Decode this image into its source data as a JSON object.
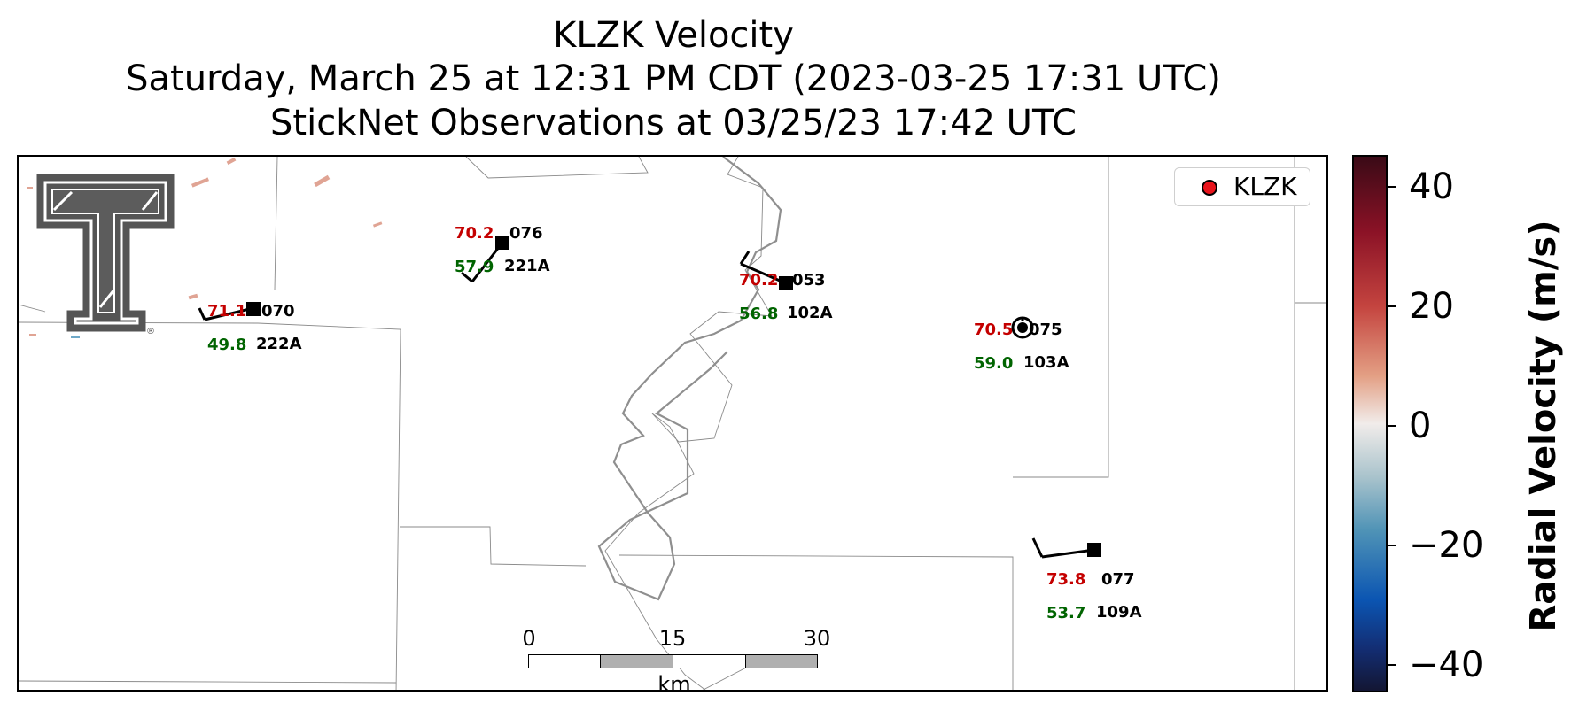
{
  "title": {
    "line1": "KLZK Velocity",
    "line2": "Saturday, March 25 at 12:31 PM CDT (2023-03-25 17:31 UTC)",
    "line3": "StickNet Observations at 03/25/23 17:42 UTC"
  },
  "legend": {
    "label": "KLZK",
    "marker_color": "#e8141c"
  },
  "scale_bar": {
    "ticks": [
      "0",
      "15",
      "30"
    ],
    "unit": "km"
  },
  "colorbar": {
    "label": "Radial Velocity (m/s)",
    "ticks": [
      "40",
      "20",
      "0",
      "−20",
      "−40"
    ],
    "range": [
      -45,
      45
    ]
  },
  "logo": {
    "name": "Texas Tech Double T"
  },
  "stations": [
    {
      "id": "070",
      "name": "222A",
      "temp": "71.1",
      "dew": "49.8"
    },
    {
      "id": "076",
      "name": "221A",
      "temp": "70.2",
      "dew": "57.9"
    },
    {
      "id": "053",
      "name": "102A",
      "temp": "70.2",
      "dew": "56.8"
    },
    {
      "id": "075",
      "name": "103A",
      "temp": "70.5",
      "dew": "59.0"
    },
    {
      "id": "077",
      "name": "109A",
      "temp": "73.8",
      "dew": "53.7"
    }
  ]
}
